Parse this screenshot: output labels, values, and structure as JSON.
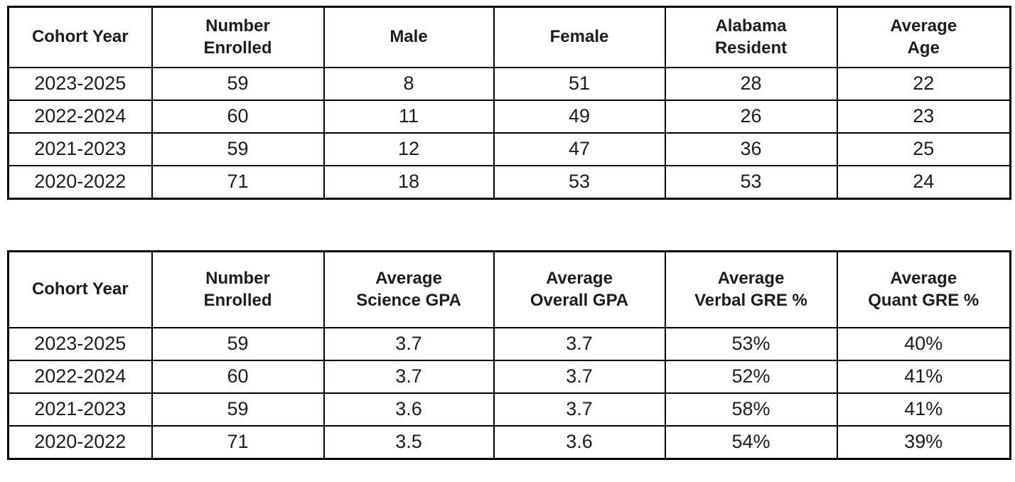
{
  "page": {
    "background_color": "#ffffff",
    "text_color": "#201c18",
    "border_color": "#000000"
  },
  "tables": [
    {
      "id": "cohort-demographics",
      "headers": [
        "Cohort Year",
        "Number\nEnrolled",
        "Male",
        "Female",
        "Alabama\nResident",
        "Average\nAge"
      ],
      "rows": [
        [
          "2023-2025",
          "59",
          "8",
          "51",
          "28",
          "22"
        ],
        [
          "2022-2024",
          "60",
          "11",
          "49",
          "26",
          "23"
        ],
        [
          "2021-2023",
          "59",
          "12",
          "47",
          "36",
          "25"
        ],
        [
          "2020-2022",
          "71",
          "18",
          "53",
          "53",
          "24"
        ]
      ]
    },
    {
      "id": "cohort-academics",
      "headers": [
        "Cohort Year",
        "Number\nEnrolled",
        "Average\nScience GPA",
        "Average\nOverall GPA",
        "Average\nVerbal GRE %",
        "Average\nQuant GRE %"
      ],
      "rows": [
        [
          "2023-2025",
          "59",
          "3.7",
          "3.7",
          "53%",
          "40%"
        ],
        [
          "2022-2024",
          "60",
          "3.7",
          "3.7",
          "52%",
          "41%"
        ],
        [
          "2021-2023",
          "59",
          "3.6",
          "3.7",
          "58%",
          "41%"
        ],
        [
          "2020-2022",
          "71",
          "3.5",
          "3.6",
          "54%",
          "39%"
        ]
      ]
    }
  ]
}
